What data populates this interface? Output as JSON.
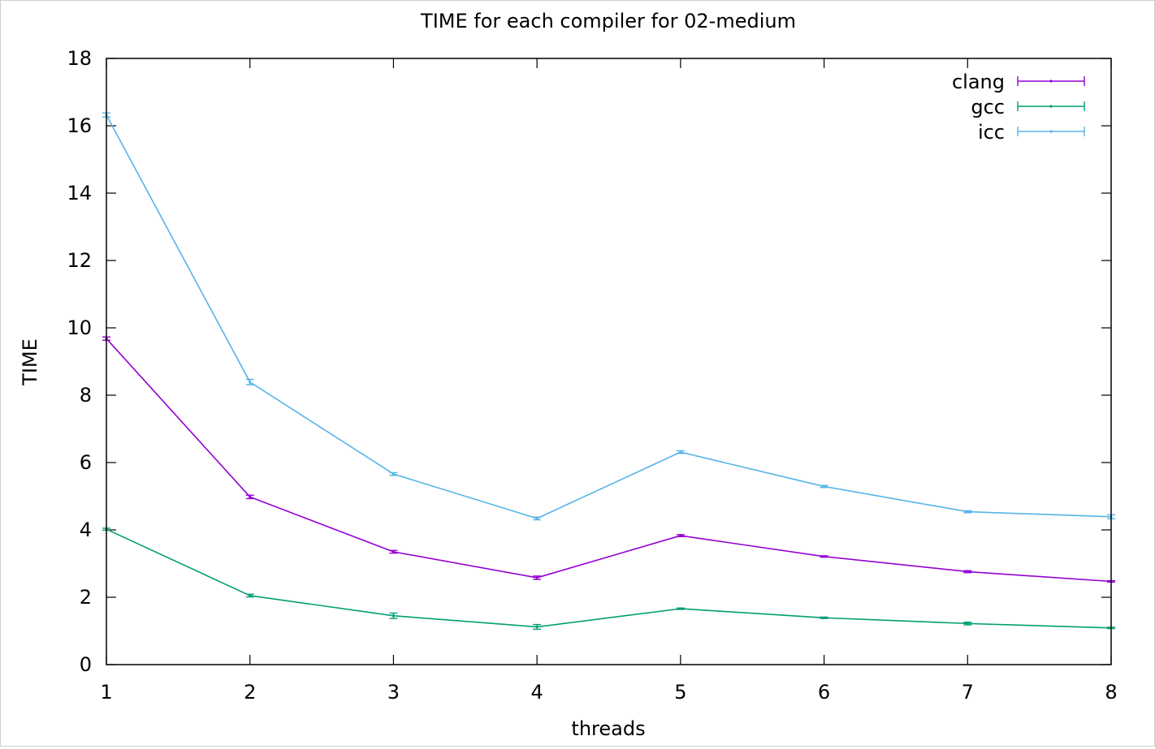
{
  "chart_data": {
    "type": "line",
    "title": "TIME for each compiler for 02-medium",
    "xlabel": "threads",
    "ylabel": "TIME",
    "xlim": [
      1,
      8
    ],
    "ylim": [
      0,
      18
    ],
    "x": [
      1,
      2,
      3,
      4,
      5,
      6,
      7,
      8
    ],
    "xticks": [
      "1",
      "2",
      "3",
      "4",
      "5",
      "6",
      "7",
      "8"
    ],
    "yticks": [
      "0",
      "2",
      "4",
      "6",
      "8",
      "10",
      "12",
      "14",
      "16",
      "18"
    ],
    "error_bars": true,
    "grid": false,
    "legend_position": "top-right",
    "series": [
      {
        "name": "clang",
        "color": "#9400d3",
        "values": [
          9.68,
          4.98,
          3.35,
          2.58,
          3.83,
          3.21,
          2.76,
          2.47
        ],
        "errors": [
          0.05,
          0.05,
          0.04,
          0.05,
          0.03,
          0.02,
          0.03,
          0.02
        ]
      },
      {
        "name": "gcc",
        "color": "#009e73",
        "values": [
          4.02,
          2.05,
          1.45,
          1.12,
          1.66,
          1.39,
          1.22,
          1.09
        ],
        "errors": [
          0.03,
          0.04,
          0.08,
          0.07,
          0.02,
          0.02,
          0.04,
          0.02
        ]
      },
      {
        "name": "icc",
        "color": "#56b4e9",
        "values": [
          16.32,
          8.39,
          5.66,
          4.34,
          6.31,
          5.29,
          4.54,
          4.39
        ],
        "errors": [
          0.06,
          0.08,
          0.04,
          0.04,
          0.04,
          0.03,
          0.03,
          0.06
        ]
      }
    ]
  }
}
